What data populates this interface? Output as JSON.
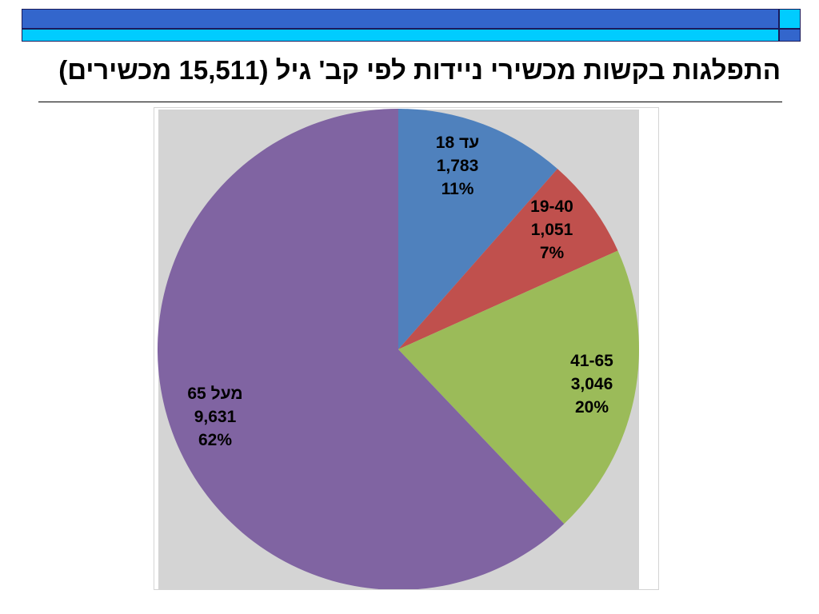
{
  "slide": {
    "title": "התפלגות בקשות מכשירי ניידות לפי קב' גיל (15,511 מכשירים)"
  },
  "colors": {
    "banner_dark_blue": "#3366cc",
    "banner_cyan": "#00ccff",
    "plot_background": "#d4d4d4"
  },
  "chart_data": {
    "type": "pie",
    "slices": [
      {
        "label": "עד 18",
        "value": 1783,
        "value_text": "1,783",
        "percent_text": "11%",
        "color": "#4f81bd"
      },
      {
        "label": "19-40",
        "value": 1051,
        "value_text": "1,051",
        "percent_text": "7%",
        "color": "#c0504d"
      },
      {
        "label": "41-65",
        "value": 3046,
        "value_text": "3,046",
        "percent_text": "20%",
        "color": "#9bbb59"
      },
      {
        "label": "מעל 65",
        "value": 9631,
        "value_text": "9,631",
        "percent_text": "62%",
        "color": "#8064a2"
      }
    ],
    "start_angle": "12 o'clock",
    "direction": "clockwise",
    "legend": "none"
  }
}
